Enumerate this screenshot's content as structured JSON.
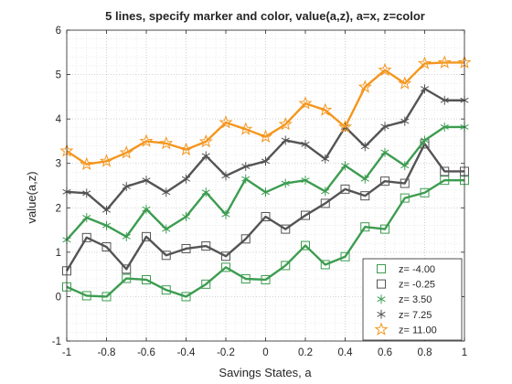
{
  "chart_data": {
    "type": "line",
    "title": "5 lines, specify marker and color, value(a,z), a=x, z=color",
    "xlabel": "Savings States, a",
    "ylabel": "value(a,z)",
    "xlim": [
      -1,
      1
    ],
    "ylim": [
      -1,
      6
    ],
    "xticks": [
      "-1",
      "-0.8",
      "-0.6",
      "-0.4",
      "-0.2",
      "0",
      "0.2",
      "0.4",
      "0.6",
      "0.8",
      "1"
    ],
    "yticks": [
      "-1",
      "0",
      "1",
      "2",
      "3",
      "4",
      "5",
      "6"
    ],
    "grid": "on (major and minor, dotted)",
    "legend_position": "bottom-right",
    "x": [
      -1,
      -0.9,
      -0.8,
      -0.7,
      -0.6,
      -0.5,
      -0.4,
      -0.3,
      -0.2,
      -0.1,
      0,
      0.1,
      0.2,
      0.3,
      0.4,
      0.5,
      0.6,
      0.7,
      0.8,
      0.9,
      1
    ],
    "series": [
      {
        "name": "z= -4.00",
        "marker": "square",
        "color": "#3c9c50",
        "values": [
          0.22,
          0.02,
          0.0,
          0.41,
          0.38,
          0.15,
          0.0,
          0.28,
          0.66,
          0.4,
          0.38,
          0.7,
          1.15,
          0.72,
          0.9,
          1.57,
          1.52,
          2.22,
          2.34,
          2.62,
          2.62
        ]
      },
      {
        "name": "z= -0.25",
        "marker": "square",
        "color": "#545454",
        "values": [
          0.58,
          1.33,
          1.12,
          0.62,
          1.35,
          0.93,
          1.08,
          1.14,
          0.91,
          1.3,
          1.8,
          1.52,
          1.83,
          2.1,
          2.42,
          2.27,
          2.6,
          2.55,
          3.44,
          2.82,
          2.82
        ]
      },
      {
        "name": "z=  3.50",
        "marker": "asterisk",
        "color": "#3c9c50",
        "values": [
          1.28,
          1.78,
          1.6,
          1.35,
          1.97,
          1.52,
          1.8,
          2.35,
          1.85,
          2.65,
          2.35,
          2.55,
          2.62,
          2.37,
          2.95,
          2.65,
          3.25,
          2.95,
          3.52,
          3.82,
          3.82
        ]
      },
      {
        "name": "z=  7.25",
        "marker": "asterisk",
        "color": "#545454",
        "values": [
          2.36,
          2.33,
          1.95,
          2.48,
          2.62,
          2.35,
          2.65,
          3.17,
          2.72,
          2.93,
          3.05,
          3.52,
          3.43,
          3.1,
          3.82,
          3.38,
          3.83,
          3.95,
          4.68,
          4.42,
          4.42
        ]
      },
      {
        "name": "z= 11.00",
        "marker": "pentagram",
        "color": "#f4961e",
        "values": [
          3.28,
          2.98,
          3.05,
          3.24,
          3.5,
          3.45,
          3.31,
          3.49,
          3.92,
          3.77,
          3.6,
          3.88,
          4.35,
          4.2,
          3.82,
          4.72,
          5.1,
          4.8,
          5.25,
          5.27,
          5.27
        ]
      }
    ]
  }
}
